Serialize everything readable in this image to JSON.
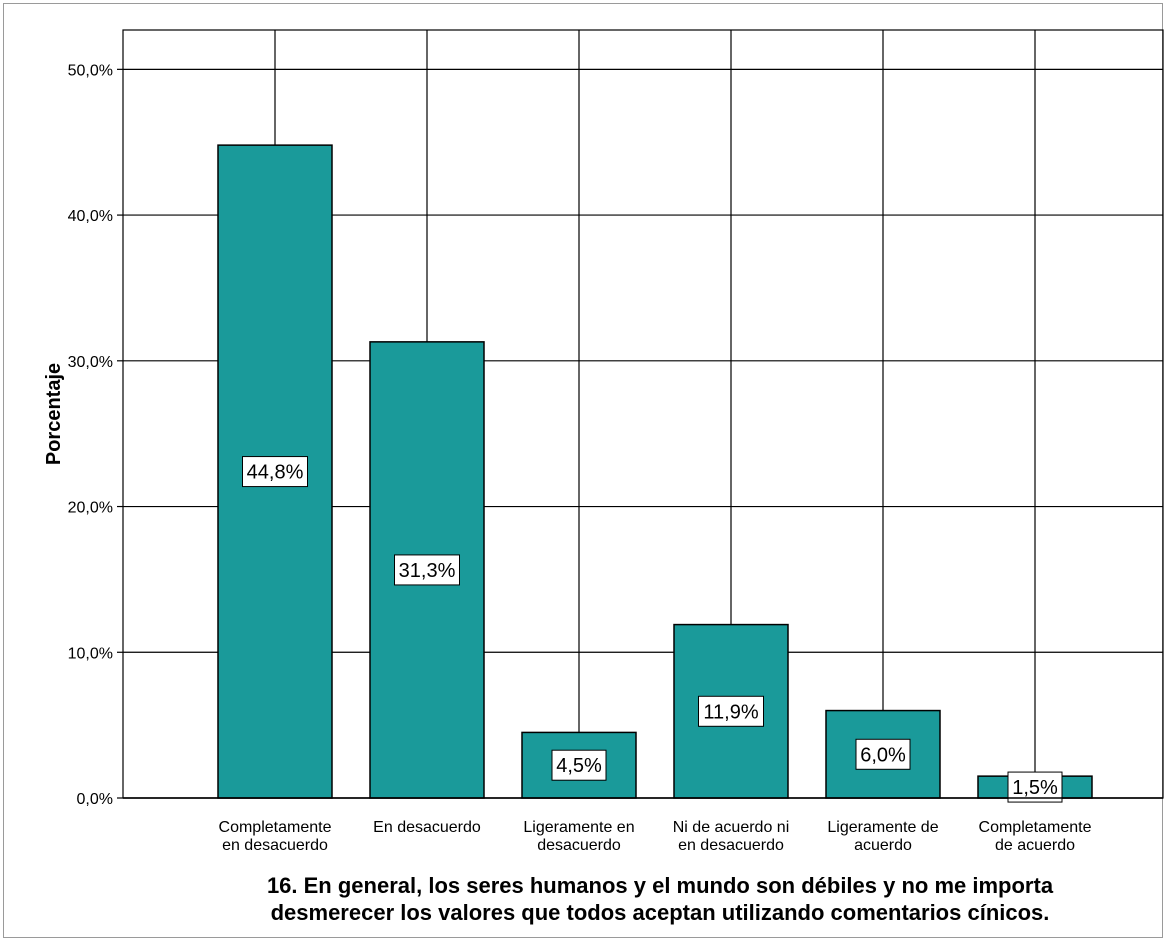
{
  "chart_data": {
    "type": "bar",
    "categories": [
      [
        "Completamente",
        "en desacuerdo"
      ],
      [
        "En desacuerdo"
      ],
      [
        "Ligeramente en",
        "desacuerdo"
      ],
      [
        "Ni de acuerdo ni",
        "en desacuerdo"
      ],
      [
        "Ligeramente de",
        "acuerdo"
      ],
      [
        "Completamente",
        "de acuerdo"
      ]
    ],
    "values": [
      44.8,
      31.3,
      4.5,
      11.9,
      6.0,
      1.5
    ],
    "data_labels": [
      "44,8%",
      "31,3%",
      "4,5%",
      "11,9%",
      "6,0%",
      "1,5%"
    ],
    "ylabel": "Porcentaje",
    "xlabel_lines": [
      "16. En general, los seres humanos y el mundo son débiles y no me importa",
      "desmerecer los valores que todos aceptan utilizando comentarios cínicos."
    ],
    "yticks": [
      0,
      10,
      20,
      30,
      40,
      50
    ],
    "ytick_labels": [
      "0,0%",
      "10,0%",
      "20,0%",
      "30,0%",
      "40,0%",
      "50,0%"
    ],
    "ylim": [
      0,
      52.7
    ],
    "grid": true,
    "colors": {
      "bar_fill": "#1a9a9a",
      "bar_stroke": "#000000",
      "grid": "#000000",
      "label_bg": "#ffffff"
    }
  }
}
